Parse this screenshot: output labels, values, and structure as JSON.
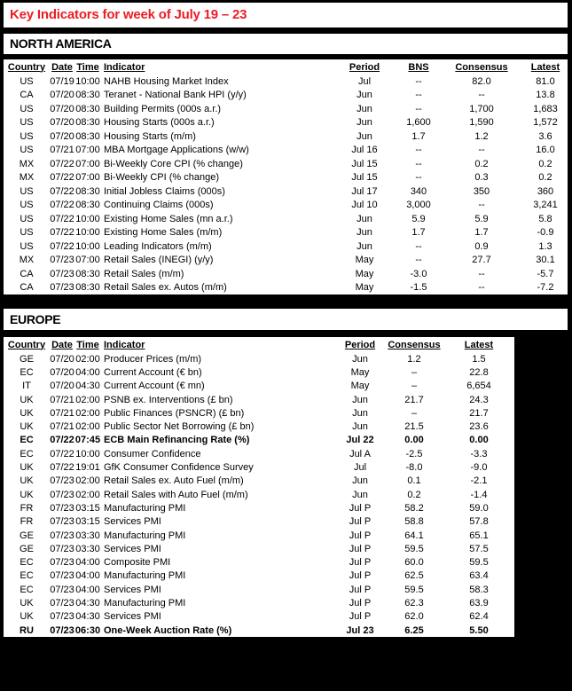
{
  "title": "Key Indicators for week of July 19 – 23",
  "colors": {
    "title_red": "#ED1C24",
    "background": "#000000",
    "panel": "#FFFFFF"
  },
  "sections": [
    {
      "name": "NORTH AMERICA",
      "columns": [
        "Country",
        "Date",
        "Time",
        "Indicator",
        "Period",
        "BNS",
        "Consensus",
        "Latest"
      ],
      "bold_rows": [],
      "rows": [
        [
          "US",
          "07/19",
          "10:00",
          "NAHB Housing Market Index",
          "Jul",
          "--",
          "82.0",
          "81.0"
        ],
        [
          "CA",
          "07/20",
          "08:30",
          "Teranet - National Bank HPI (y/y)",
          "Jun",
          "--",
          "--",
          "13.8"
        ],
        [
          "US",
          "07/20",
          "08:30",
          "Building Permits (000s a.r.)",
          "Jun",
          "--",
          "1,700",
          "1,683"
        ],
        [
          "US",
          "07/20",
          "08:30",
          "Housing Starts (000s a.r.)",
          "Jun",
          "1,600",
          "1,590",
          "1,572"
        ],
        [
          "US",
          "07/20",
          "08:30",
          "Housing Starts (m/m)",
          "Jun",
          "1.7",
          "1.2",
          "3.6"
        ],
        [
          "US",
          "07/21",
          "07:00",
          "MBA Mortgage Applications (w/w)",
          "Jul 16",
          "--",
          "--",
          "16.0"
        ],
        [
          "MX",
          "07/22",
          "07:00",
          "Bi-Weekly Core CPI (% change)",
          "Jul 15",
          "--",
          "0.2",
          "0.2"
        ],
        [
          "MX",
          "07/22",
          "07:00",
          "Bi-Weekly CPI (% change)",
          "Jul 15",
          "--",
          "0.3",
          "0.2"
        ],
        [
          "US",
          "07/22",
          "08:30",
          "Initial Jobless Claims (000s)",
          "Jul 17",
          "340",
          "350",
          "360"
        ],
        [
          "US",
          "07/22",
          "08:30",
          "Continuing Claims (000s)",
          "Jul 10",
          "3,000",
          "--",
          "3,241"
        ],
        [
          "US",
          "07/22",
          "10:00",
          "Existing Home Sales (mn a.r.)",
          "Jun",
          "5.9",
          "5.9",
          "5.8"
        ],
        [
          "US",
          "07/22",
          "10:00",
          "Existing Home Sales (m/m)",
          "Jun",
          "1.7",
          "1.7",
          "-0.9"
        ],
        [
          "US",
          "07/22",
          "10:00",
          "Leading Indicators (m/m)",
          "Jun",
          "--",
          "0.9",
          "1.3"
        ],
        [
          "MX",
          "07/23",
          "07:00",
          "Retail Sales (INEGI) (y/y)",
          "May",
          "--",
          "27.7",
          "30.1"
        ],
        [
          "CA",
          "07/23",
          "08:30",
          "Retail Sales (m/m)",
          "May",
          "-3.0",
          "--",
          "-5.7"
        ],
        [
          "CA",
          "07/23",
          "08:30",
          "Retail Sales ex. Autos (m/m)",
          "May",
          "-1.5",
          "--",
          "-7.2"
        ]
      ]
    },
    {
      "name": "EUROPE",
      "columns": [
        "Country",
        "Date",
        "Time",
        "Indicator",
        "Period",
        "Consensus",
        "Latest"
      ],
      "bold_rows": [
        6,
        20
      ],
      "rows": [
        [
          "GE",
          "07/20",
          "02:00",
          "Producer Prices (m/m)",
          "Jun",
          "1.2",
          "1.5"
        ],
        [
          "EC",
          "07/20",
          "04:00",
          "Current Account (€ bn)",
          "May",
          "–",
          "22.8"
        ],
        [
          "IT",
          "07/20",
          "04:30",
          "Current Account (€ mn)",
          "May",
          "–",
          "6,654"
        ],
        [
          "UK",
          "07/21",
          "02:00",
          "PSNB ex. Interventions (£ bn)",
          "Jun",
          "21.7",
          "24.3"
        ],
        [
          "UK",
          "07/21",
          "02:00",
          "Public Finances (PSNCR) (£ bn)",
          "Jun",
          "–",
          "21.7"
        ],
        [
          "UK",
          "07/21",
          "02:00",
          "Public Sector Net Borrowing (£ bn)",
          "Jun",
          "21.5",
          "23.6"
        ],
        [
          "EC",
          "07/22",
          "07:45",
          "ECB Main Refinancing Rate (%)",
          "Jul 22",
          "0.00",
          "0.00"
        ],
        [
          "EC",
          "07/22",
          "10:00",
          "Consumer Confidence",
          "Jul A",
          "-2.5",
          "-3.3"
        ],
        [
          "UK",
          "07/22",
          "19:01",
          "GfK Consumer Confidence Survey",
          "Jul",
          "-8.0",
          "-9.0"
        ],
        [
          "UK",
          "07/23",
          "02:00",
          "Retail Sales ex. Auto Fuel (m/m)",
          "Jun",
          "0.1",
          "-2.1"
        ],
        [
          "UK",
          "07/23",
          "02:00",
          "Retail Sales with Auto Fuel (m/m)",
          "Jun",
          "0.2",
          "-1.4"
        ],
        [
          "FR",
          "07/23",
          "03:15",
          "Manufacturing PMI",
          "Jul P",
          "58.2",
          "59.0"
        ],
        [
          "FR",
          "07/23",
          "03:15",
          "Services PMI",
          "Jul P",
          "58.8",
          "57.8"
        ],
        [
          "GE",
          "07/23",
          "03:30",
          "Manufacturing PMI",
          "Jul P",
          "64.1",
          "65.1"
        ],
        [
          "GE",
          "07/23",
          "03:30",
          "Services PMI",
          "Jul P",
          "59.5",
          "57.5"
        ],
        [
          "EC",
          "07/23",
          "04:00",
          "Composite PMI",
          "Jul P",
          "60.0",
          "59.5"
        ],
        [
          "EC",
          "07/23",
          "04:00",
          "Manufacturing PMI",
          "Jul P",
          "62.5",
          "63.4"
        ],
        [
          "EC",
          "07/23",
          "04:00",
          "Services PMI",
          "Jul P",
          "59.5",
          "58.3"
        ],
        [
          "UK",
          "07/23",
          "04:30",
          "Manufacturing PMI",
          "Jul P",
          "62.3",
          "63.9"
        ],
        [
          "UK",
          "07/23",
          "04:30",
          "Services PMI",
          "Jul P",
          "62.0",
          "62.4"
        ],
        [
          "RU",
          "07/23",
          "06:30",
          "One-Week Auction Rate (%)",
          "Jul 23",
          "6.25",
          "5.50"
        ]
      ]
    }
  ]
}
